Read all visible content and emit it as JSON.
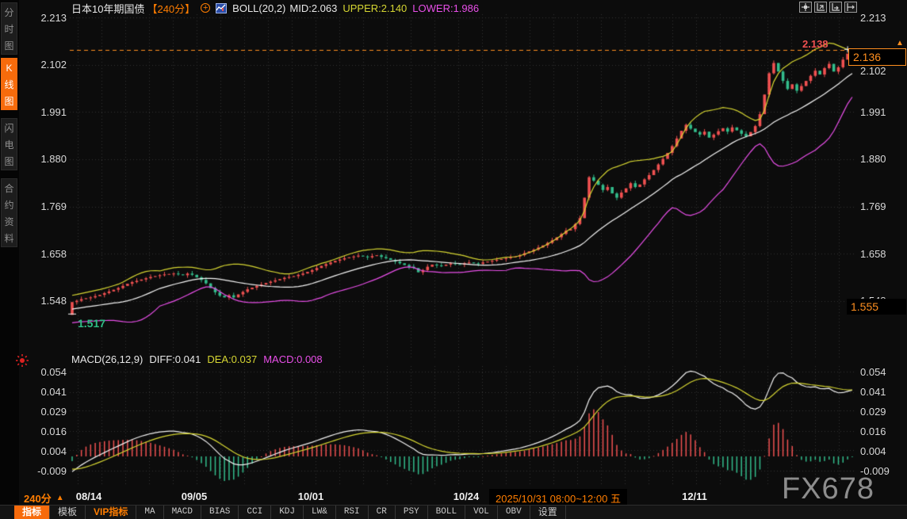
{
  "header": {
    "title": "日本10年期国债",
    "period_badge": "【240分】",
    "boll_label": "BOLL(20,2)",
    "mid_label": "MID:2.063",
    "upper_label": "UPPER:2.140",
    "lower_label": "LOWER:1.986"
  },
  "sidebar": {
    "items": [
      {
        "label": "分时图",
        "active": false
      },
      {
        "label": "K线图",
        "active": true
      },
      {
        "label": "闪电图",
        "active": false
      },
      {
        "label": "合约资料",
        "active": false
      }
    ]
  },
  "macd_header": {
    "label": "MACD(26,12,9)",
    "diff": "DIFF:0.041",
    "dea": "DEA:0.037",
    "macd": "MACD:0.008"
  },
  "markers": {
    "high_label": "2.138",
    "last_price_label": "2.136",
    "session_low_label": "1.517",
    "right_marker_label": "1.555",
    "latest_arrow": "▲"
  },
  "main_y_ticks": [
    "2.213",
    "2.102",
    "1.991",
    "1.880",
    "1.769",
    "1.658",
    "1.548"
  ],
  "macd_y_ticks": [
    "0.054",
    "0.041",
    "0.029",
    "0.016",
    "0.004",
    "-0.009"
  ],
  "x_axis": {
    "period_label": "240分",
    "period_arrow": "▲",
    "ticks": [
      "08/14",
      "09/05",
      "10/01",
      "10/24",
      "12/11"
    ],
    "highlight": "2025/10/31 08:00~12:00 五"
  },
  "toolbar": {
    "tabs": [
      {
        "label": "指标",
        "style": "active"
      },
      {
        "label": "模板",
        "style": "normal"
      },
      {
        "label": "VIP指标",
        "style": "vip"
      },
      {
        "label": "MA",
        "style": "en"
      },
      {
        "label": "MACD",
        "style": "en"
      },
      {
        "label": "BIAS",
        "style": "en"
      },
      {
        "label": "CCI",
        "style": "en"
      },
      {
        "label": "KDJ",
        "style": "en"
      },
      {
        "label": "LW&",
        "style": "en"
      },
      {
        "label": "RSI",
        "style": "en"
      },
      {
        "label": "CR",
        "style": "en"
      },
      {
        "label": "PSY",
        "style": "en"
      },
      {
        "label": "BOLL",
        "style": "en"
      },
      {
        "label": "VOL",
        "style": "en"
      },
      {
        "label": "OBV",
        "style": "en"
      },
      {
        "label": "设置",
        "style": "normal"
      }
    ]
  },
  "watermark": "FX678",
  "colors": {
    "up": "#f05151",
    "down": "#33bd8c",
    "boll_upper": "#d6d632",
    "boll_mid": "#f5f5f5",
    "boll_lower": "#e94fe9",
    "accent": "#ff8f1f",
    "grid": "#343434",
    "diff_line": "#f2f2f2"
  },
  "chart_data": {
    "type": "candlestick",
    "instrument": "日本10年期国债",
    "period": "240分",
    "indicators": {
      "boll": {
        "params": [
          20,
          2
        ],
        "mid": 2.063,
        "upper": 2.14,
        "lower": 1.986
      },
      "macd": {
        "params": [
          26,
          12,
          9
        ],
        "diff": 0.041,
        "dea": 0.037,
        "macd": 0.008
      }
    },
    "y_axis": {
      "main": [
        2.213,
        2.102,
        1.991,
        1.88,
        1.769,
        1.658,
        1.548
      ],
      "macd": [
        0.054,
        0.041,
        0.029,
        0.016,
        0.004,
        -0.009
      ]
    },
    "x_ticks": [
      "08/14",
      "09/05",
      "10/01",
      "10/24",
      "12/11"
    ],
    "x_tick_indices": [
      2,
      27,
      52,
      85,
      135
    ],
    "highlight_date": "2025/10/31 08:00~12:00 五",
    "highlight_index": 106,
    "last_price": 2.136,
    "high": 2.138,
    "session_low": 1.517,
    "right_marker_price": 1.555,
    "pre_closes": [
      1.558,
      1.548,
      1.54,
      1.532,
      1.524,
      1.518,
      1.513,
      1.51,
      1.512,
      1.515
    ],
    "closes": [
      1.545,
      1.548,
      1.552,
      1.554,
      1.556,
      1.559,
      1.562,
      1.566,
      1.57,
      1.574,
      1.578,
      1.583,
      1.588,
      1.592,
      1.595,
      1.598,
      1.601,
      1.604,
      1.606,
      1.608,
      1.61,
      1.611,
      1.612,
      1.61,
      1.608,
      1.612,
      1.609,
      1.603,
      1.597,
      1.589,
      1.578,
      1.568,
      1.56,
      1.556,
      1.561,
      1.556,
      1.563,
      1.569,
      1.575,
      1.579,
      1.583,
      1.586,
      1.59,
      1.593,
      1.596,
      1.599,
      1.602,
      1.604,
      1.606,
      1.609,
      1.612,
      1.616,
      1.62,
      1.625,
      1.63,
      1.634,
      1.638,
      1.642,
      1.645,
      1.648,
      1.65,
      1.652,
      1.654,
      1.652,
      1.65,
      1.653,
      1.655,
      1.651,
      1.648,
      1.644,
      1.64,
      1.636,
      1.632,
      1.628,
      1.625,
      1.615,
      1.62,
      1.628,
      1.633,
      1.631,
      1.63,
      1.633,
      1.636,
      1.634,
      1.633,
      1.636,
      1.638,
      1.636,
      1.635,
      1.638,
      1.64,
      1.642,
      1.644,
      1.646,
      1.648,
      1.65,
      1.652,
      1.655,
      1.66,
      1.664,
      1.668,
      1.673,
      1.678,
      1.684,
      1.69,
      1.697,
      1.705,
      1.713,
      1.716,
      1.728,
      1.742,
      1.79,
      1.838,
      1.83,
      1.82,
      1.808,
      1.815,
      1.8,
      1.79,
      1.802,
      1.812,
      1.824,
      1.815,
      1.821,
      1.833,
      1.843,
      1.855,
      1.868,
      1.881,
      1.895,
      1.911,
      1.929,
      1.947,
      1.961,
      1.952,
      1.944,
      1.938,
      1.945,
      1.931,
      1.938,
      1.946,
      1.953,
      1.945,
      1.955,
      1.948,
      1.94,
      1.934,
      1.944,
      1.958,
      1.986,
      2.032,
      2.082,
      2.106,
      2.086,
      2.064,
      2.045,
      2.056,
      2.041,
      2.052,
      2.064,
      2.076,
      2.088,
      2.079,
      2.094,
      2.104,
      2.086,
      2.096,
      2.114,
      2.128,
      2.136
    ]
  }
}
